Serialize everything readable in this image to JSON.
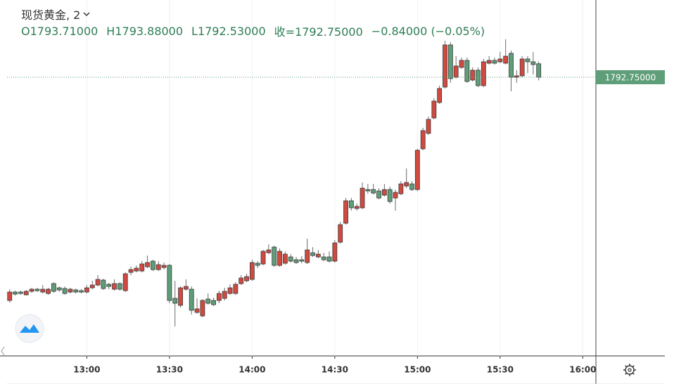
{
  "chart_data": {
    "type": "candlestick",
    "title": "现货黄金, 2",
    "ohlc_labels": [
      "O1793.71000",
      "H1793.88000",
      "L1792.53000",
      "收=1792.75000",
      "−0.84000 (−0.05%)"
    ],
    "last_price_label": "1792.75000",
    "up_color": "#d1493f",
    "down_color": "#5e9e78",
    "last_price_color": "#5e9e78",
    "grid": true,
    "xlim": [
      "12:29",
      "16:04"
    ],
    "xticks": [
      "13:00",
      "13:30",
      "14:00",
      "14:30",
      "15:00",
      "15:30",
      "16:00"
    ],
    "ylim": [
      1772.9,
      1798.25
    ],
    "x": [
      "12:32",
      "12:34",
      "12:36",
      "12:38",
      "12:40",
      "12:42",
      "12:44",
      "12:46",
      "12:48",
      "12:50",
      "12:52",
      "12:54",
      "12:56",
      "12:58",
      "13:00",
      "13:02",
      "13:04",
      "13:06",
      "13:08",
      "13:10",
      "13:12",
      "13:14",
      "13:16",
      "13:18",
      "13:20",
      "13:22",
      "13:24",
      "13:26",
      "13:28",
      "13:30",
      "13:32",
      "13:34",
      "13:36",
      "13:38",
      "13:40",
      "13:42",
      "13:44",
      "13:46",
      "13:48",
      "13:50",
      "13:52",
      "13:54",
      "13:56",
      "13:58",
      "14:00",
      "14:02",
      "14:04",
      "14:06",
      "14:08",
      "14:10",
      "14:12",
      "14:14",
      "14:16",
      "14:18",
      "14:20",
      "14:22",
      "14:24",
      "14:26",
      "14:28",
      "14:30",
      "14:32",
      "14:34",
      "14:36",
      "14:38",
      "14:40",
      "14:42",
      "14:44",
      "14:46",
      "14:48",
      "14:50",
      "14:52",
      "14:54",
      "14:56",
      "14:58",
      "15:00",
      "15:02",
      "15:04",
      "15:06",
      "15:08",
      "15:10",
      "15:12",
      "15:14",
      "15:16",
      "15:18",
      "15:20",
      "15:22",
      "15:24",
      "15:26",
      "15:28",
      "15:30",
      "15:32",
      "15:34",
      "15:36",
      "15:38",
      "15:40",
      "15:42",
      "15:44"
    ],
    "open": [
      1776.85,
      1777.45,
      1777.45,
      1777.25,
      1777.5,
      1777.65,
      1777.45,
      1777.35,
      1778.05,
      1777.75,
      1777.7,
      1777.45,
      1777.6,
      1777.55,
      1777.45,
      1777.75,
      1777.95,
      1778.3,
      1778.0,
      1777.65,
      1778.05,
      1777.55,
      1778.85,
      1778.95,
      1778.95,
      1779.25,
      1779.65,
      1779.05,
      1779.2,
      1779.35,
      1777.0,
      1776.5,
      1777.65,
      1777.65,
      1776.0,
      1775.75,
      1776.95,
      1776.85,
      1776.85,
      1777.0,
      1777.35,
      1777.35,
      1778.05,
      1778.25,
      1778.35,
      1779.5,
      1779.45,
      1780.25,
      1780.65,
      1779.35,
      1779.5,
      1779.95,
      1779.75,
      1779.75,
      1779.55,
      1780.25,
      1779.95,
      1779.95,
      1779.95,
      1779.65,
      1781.0,
      1782.35,
      1783.95,
      1783.4,
      1783.45,
      1784.75,
      1784.75,
      1784.65,
      1784.35,
      1784.75,
      1784.15,
      1784.45,
      1785.0,
      1785.15,
      1784.75,
      1787.65,
      1788.75,
      1789.85,
      1790.95,
      1792.05,
      1795.05,
      1792.75,
      1793.45,
      1793.95,
      1792.55,
      1793.25,
      1792.15,
      1793.75,
      1793.95,
      1793.85,
      1793.75,
      1794.45,
      1792.75,
      1792.85,
      1794.05,
      1793.85,
      1793.71
    ],
    "high": [
      1777.65,
      1777.55,
      1777.55,
      1777.6,
      1777.75,
      1777.75,
      1777.95,
      1777.75,
      1778.15,
      1777.85,
      1777.85,
      1777.75,
      1777.7,
      1777.65,
      1777.95,
      1778.25,
      1778.65,
      1778.4,
      1778.1,
      1778.35,
      1778.15,
      1778.85,
      1779.25,
      1779.35,
      1779.65,
      1780.05,
      1779.75,
      1779.65,
      1779.55,
      1779.45,
      1778.25,
      1777.85,
      1778.35,
      1777.85,
      1777.0,
      1776.95,
      1777.35,
      1777.05,
      1777.55,
      1777.75,
      1778.0,
      1778.15,
      1778.65,
      1778.75,
      1779.75,
      1779.65,
      1780.45,
      1780.85,
      1780.75,
      1780.55,
      1780.35,
      1780.15,
      1779.95,
      1780.0,
      1781.25,
      1780.65,
      1780.45,
      1780.25,
      1780.35,
      1781.15,
      1782.45,
      1784.15,
      1784.15,
      1783.75,
      1785.25,
      1785.15,
      1785.15,
      1784.85,
      1785.15,
      1784.95,
      1784.75,
      1785.35,
      1786.25,
      1785.35,
      1787.65,
      1789.15,
      1789.95,
      1791.25,
      1792.15,
      1795.35,
      1795.25,
      1794.25,
      1794.15,
      1794.15,
      1793.45,
      1793.45,
      1794.05,
      1794.25,
      1794.15,
      1794.55,
      1795.45,
      1794.65,
      1793.25,
      1794.25,
      1794.25,
      1794.55,
      1793.88
    ],
    "low": [
      1776.7,
      1777.2,
      1777.25,
      1777.2,
      1777.4,
      1777.45,
      1777.35,
      1777.25,
      1777.4,
      1777.45,
      1777.25,
      1777.35,
      1777.35,
      1777.35,
      1777.35,
      1777.65,
      1777.85,
      1777.6,
      1777.65,
      1777.55,
      1777.55,
      1777.45,
      1778.65,
      1778.85,
      1778.85,
      1779.15,
      1778.95,
      1778.95,
      1779.05,
      1776.65,
      1775.0,
      1776.35,
      1777.55,
      1775.85,
      1775.9,
      1775.65,
      1776.55,
      1776.45,
      1776.65,
      1776.85,
      1777.25,
      1777.25,
      1777.95,
      1778.15,
      1778.25,
      1779.15,
      1779.35,
      1780.15,
      1779.25,
      1779.25,
      1779.4,
      1779.55,
      1779.45,
      1779.5,
      1779.45,
      1779.95,
      1779.85,
      1779.65,
      1779.55,
      1779.55,
      1780.9,
      1782.25,
      1783.25,
      1783.25,
      1783.35,
      1784.45,
      1784.4,
      1784.05,
      1784.25,
      1783.75,
      1783.25,
      1784.35,
      1784.85,
      1784.65,
      1784.65,
      1787.55,
      1788.65,
      1789.75,
      1790.85,
      1791.95,
      1792.35,
      1792.65,
      1793.35,
      1792.35,
      1792.45,
      1792.05,
      1792.05,
      1793.65,
      1793.65,
      1793.75,
      1793.65,
      1791.75,
      1792.35,
      1792.75,
      1793.05,
      1792.95,
      1792.53
    ],
    "close": [
      1777.45,
      1777.3,
      1777.35,
      1777.5,
      1777.65,
      1777.55,
      1777.65,
      1777.65,
      1777.5,
      1777.6,
      1777.35,
      1777.65,
      1777.45,
      1777.45,
      1777.75,
      1777.95,
      1778.35,
      1777.7,
      1777.85,
      1778.05,
      1777.65,
      1778.75,
      1779.05,
      1779.15,
      1779.45,
      1779.55,
      1779.05,
      1779.4,
      1779.35,
      1776.85,
      1776.65,
      1777.75,
      1777.85,
      1776.15,
      1776.25,
      1776.85,
      1776.65,
      1776.55,
      1777.35,
      1777.5,
      1777.75,
      1778.0,
      1778.45,
      1778.55,
      1779.55,
      1779.35,
      1780.35,
      1780.45,
      1779.35,
      1780.35,
      1780.15,
      1779.65,
      1779.55,
      1779.65,
      1780.45,
      1780.05,
      1780.15,
      1779.75,
      1779.65,
      1780.95,
      1782.25,
      1783.95,
      1783.45,
      1783.55,
      1784.85,
      1784.65,
      1784.5,
      1784.15,
      1784.75,
      1783.9,
      1784.55,
      1785.15,
      1785.25,
      1784.75,
      1787.55,
      1788.95,
      1789.75,
      1791.05,
      1791.95,
      1795.05,
      1792.65,
      1793.55,
      1793.95,
      1792.45,
      1793.25,
      1792.15,
      1793.85,
      1793.95,
      1793.75,
      1794.05,
      1794.25,
      1792.75,
      1792.85,
      1794.05,
      1793.85,
      1793.65,
      1792.75
    ]
  }
}
